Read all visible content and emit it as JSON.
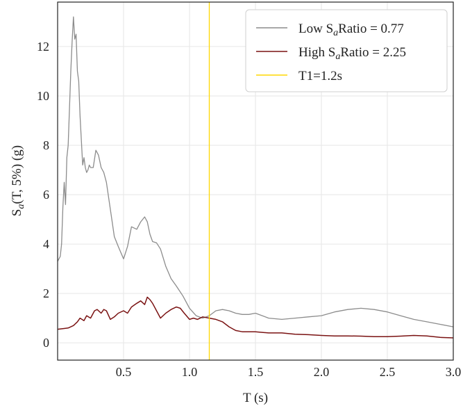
{
  "chart_data": {
    "type": "line",
    "xlabel": "T (s)",
    "ylabel_base": "S",
    "ylabel_sub": "a",
    "ylabel_rest": "(T, 5%) (g)",
    "xlim": [
      0.0,
      3.0
    ],
    "ylim": [
      -0.7,
      13.8
    ],
    "xticks": [
      0.5,
      1.0,
      1.5,
      2.0,
      2.5,
      3.0
    ],
    "xtick_labels": [
      "0.5",
      "1.0",
      "1.5",
      "2.0",
      "2.5",
      "3.0"
    ],
    "yticks": [
      0,
      2,
      4,
      6,
      8,
      10,
      12
    ],
    "ytick_labels": [
      "0",
      "2",
      "4",
      "6",
      "8",
      "10",
      "12"
    ],
    "grid": true,
    "legend_position": "top-right",
    "series": [
      {
        "name": "Low SaRatio = 0.77",
        "legend_prefix": "Low S",
        "legend_sub": "a",
        "legend_suffix": "Ratio = 0.77",
        "color": "#8c8c8c",
        "x": [
          0.0,
          0.02,
          0.03,
          0.04,
          0.05,
          0.06,
          0.07,
          0.08,
          0.09,
          0.1,
          0.11,
          0.12,
          0.13,
          0.14,
          0.15,
          0.16,
          0.17,
          0.18,
          0.19,
          0.2,
          0.21,
          0.22,
          0.23,
          0.24,
          0.25,
          0.27,
          0.29,
          0.31,
          0.33,
          0.35,
          0.37,
          0.4,
          0.43,
          0.46,
          0.5,
          0.53,
          0.56,
          0.6,
          0.63,
          0.66,
          0.68,
          0.7,
          0.72,
          0.75,
          0.78,
          0.82,
          0.86,
          0.9,
          0.95,
          1.0,
          1.05,
          1.1,
          1.15,
          1.2,
          1.25,
          1.3,
          1.35,
          1.4,
          1.45,
          1.5,
          1.6,
          1.7,
          1.8,
          1.9,
          2.0,
          2.1,
          2.2,
          2.3,
          2.4,
          2.5,
          2.6,
          2.7,
          2.8,
          2.9,
          3.0
        ],
        "y": [
          3.3,
          3.5,
          4.0,
          5.5,
          6.5,
          5.6,
          7.5,
          8.0,
          9.5,
          11.0,
          12.2,
          13.2,
          12.3,
          12.5,
          11.0,
          10.6,
          9.2,
          8.2,
          7.2,
          7.5,
          7.1,
          6.9,
          7.0,
          7.2,
          7.1,
          7.1,
          7.8,
          7.6,
          7.1,
          6.9,
          6.5,
          5.4,
          4.3,
          3.9,
          3.4,
          3.9,
          4.7,
          4.6,
          4.9,
          5.1,
          4.9,
          4.4,
          4.1,
          4.05,
          3.8,
          3.1,
          2.6,
          2.3,
          1.9,
          1.4,
          1.1,
          1.0,
          1.1,
          1.3,
          1.35,
          1.3,
          1.2,
          1.15,
          1.15,
          1.2,
          1.0,
          0.95,
          1.0,
          1.05,
          1.1,
          1.25,
          1.35,
          1.4,
          1.35,
          1.25,
          1.1,
          0.95,
          0.85,
          0.75,
          0.65
        ]
      },
      {
        "name": "High SaRatio = 2.25",
        "legend_prefix": "High S",
        "legend_sub": "a",
        "legend_suffix": "Ratio = 2.25",
        "color": "#7a1212",
        "x": [
          0.0,
          0.05,
          0.08,
          0.1,
          0.12,
          0.15,
          0.17,
          0.2,
          0.22,
          0.25,
          0.28,
          0.3,
          0.33,
          0.35,
          0.37,
          0.4,
          0.43,
          0.46,
          0.5,
          0.53,
          0.56,
          0.6,
          0.63,
          0.66,
          0.68,
          0.7,
          0.72,
          0.75,
          0.78,
          0.82,
          0.86,
          0.9,
          0.93,
          0.96,
          1.0,
          1.03,
          1.06,
          1.1,
          1.15,
          1.2,
          1.25,
          1.3,
          1.35,
          1.4,
          1.5,
          1.6,
          1.7,
          1.8,
          1.9,
          2.0,
          2.1,
          2.2,
          2.3,
          2.4,
          2.5,
          2.6,
          2.7,
          2.8,
          2.9,
          3.0
        ],
        "y": [
          0.55,
          0.58,
          0.6,
          0.65,
          0.7,
          0.85,
          1.0,
          0.9,
          1.1,
          1.0,
          1.3,
          1.35,
          1.2,
          1.35,
          1.3,
          0.95,
          1.05,
          1.2,
          1.3,
          1.2,
          1.45,
          1.6,
          1.7,
          1.55,
          1.85,
          1.75,
          1.6,
          1.3,
          1.0,
          1.2,
          1.35,
          1.45,
          1.4,
          1.2,
          0.95,
          1.0,
          0.95,
          1.05,
          1.0,
          0.95,
          0.85,
          0.65,
          0.5,
          0.45,
          0.45,
          0.4,
          0.4,
          0.35,
          0.33,
          0.3,
          0.28,
          0.28,
          0.27,
          0.25,
          0.25,
          0.27,
          0.3,
          0.28,
          0.22,
          0.2
        ]
      }
    ],
    "vline": {
      "name": "T1=1.2s",
      "x": 1.15,
      "color": "#ffd700"
    }
  }
}
